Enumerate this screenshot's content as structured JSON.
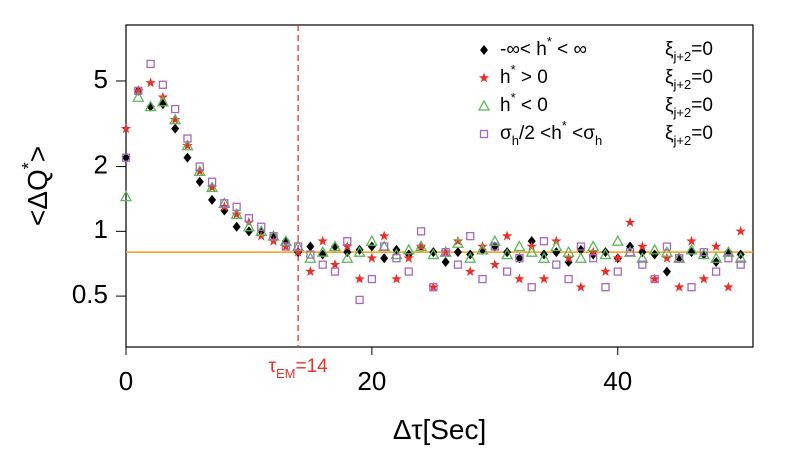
{
  "chart_data": {
    "type": "scatter",
    "xlabel": [
      {
        "text": "Δτ[Sec]"
      }
    ],
    "ylabel": [
      {
        "text": "<ΔQ"
      },
      {
        "text": "*",
        "style": "sup"
      },
      {
        "text": ">"
      }
    ],
    "xlim": [
      0,
      51
    ],
    "ylim": [
      0.29,
      9.1
    ],
    "xticks": [
      0,
      20,
      40
    ],
    "yticks": [
      0.5,
      1,
      2,
      5
    ],
    "log_y": true,
    "legend": "upper right",
    "x": [
      0,
      1,
      2,
      3,
      4,
      5,
      6,
      7,
      8,
      9,
      10,
      11,
      12,
      13,
      14,
      15,
      16,
      17,
      18,
      19,
      20,
      21,
      22,
      23,
      24,
      25,
      26,
      27,
      28,
      29,
      30,
      31,
      32,
      33,
      34,
      35,
      36,
      37,
      38,
      39,
      40,
      41,
      42,
      43,
      44,
      45,
      46,
      47,
      48,
      49,
      50
    ],
    "series": [
      {
        "name": [
          {
            "text": "-∞< h"
          },
          {
            "text": "*",
            "style": "sup"
          },
          {
            "text": " < ∞"
          }
        ],
        "condition": [
          {
            "text": "ξ"
          },
          {
            "text": "j+2",
            "style": "sub"
          },
          {
            "text": "=0"
          }
        ],
        "marker": "diamond",
        "color": "#000000",
        "values": [
          2.2,
          4.5,
          3.8,
          3.9,
          3.0,
          2.2,
          1.7,
          1.4,
          1.25,
          1.05,
          1.0,
          1.0,
          0.95,
          0.9,
          0.8,
          0.85,
          0.78,
          0.85,
          0.8,
          0.82,
          0.85,
          0.75,
          0.82,
          0.78,
          0.85,
          0.8,
          0.72,
          0.8,
          0.78,
          0.82,
          0.85,
          0.8,
          0.75,
          0.9,
          0.78,
          0.8,
          0.72,
          0.82,
          0.78,
          0.8,
          0.75,
          0.85,
          0.8,
          0.78,
          0.65,
          0.75,
          0.8,
          0.78,
          0.72,
          0.8,
          0.78
        ]
      },
      {
        "name": [
          {
            "text": "h"
          },
          {
            "text": "*",
            "style": "sup"
          },
          {
            "text": " > 0"
          }
        ],
        "condition": [
          {
            "text": "ξ"
          },
          {
            "text": "j+2",
            "style": "sub"
          },
          {
            "text": "=0"
          }
        ],
        "marker": "star",
        "color": "#e8312a",
        "values": [
          3.0,
          4.5,
          4.9,
          4.2,
          3.3,
          2.5,
          1.9,
          1.6,
          1.3,
          1.2,
          1.1,
          0.95,
          0.9,
          0.85,
          0.8,
          0.65,
          0.9,
          0.7,
          0.85,
          0.6,
          0.75,
          0.95,
          0.6,
          0.75,
          0.85,
          0.55,
          0.8,
          0.9,
          0.65,
          0.85,
          0.7,
          0.95,
          0.6,
          0.85,
          0.6,
          0.9,
          0.75,
          0.55,
          0.8,
          0.65,
          0.75,
          1.1,
          0.85,
          0.6,
          0.75,
          0.55,
          0.9,
          0.6,
          0.85,
          0.55,
          1.0
        ]
      },
      {
        "name": [
          {
            "text": "h"
          },
          {
            "text": "*",
            "style": "sup"
          },
          {
            "text": " < 0"
          }
        ],
        "condition": [
          {
            "text": "ξ"
          },
          {
            "text": "j+2",
            "style": "sub"
          },
          {
            "text": "=0"
          }
        ],
        "marker": "triangle",
        "color": "#5cb85c",
        "values": [
          1.45,
          4.2,
          3.8,
          4.0,
          3.3,
          2.5,
          1.9,
          1.6,
          1.35,
          1.2,
          1.05,
          1.0,
          0.95,
          0.9,
          0.85,
          0.75,
          0.8,
          0.85,
          0.75,
          0.8,
          0.9,
          0.85,
          0.78,
          0.82,
          0.85,
          0.78,
          0.8,
          0.88,
          0.75,
          0.82,
          0.9,
          0.78,
          0.85,
          0.8,
          0.75,
          0.85,
          0.8,
          0.75,
          0.85,
          0.78,
          0.9,
          0.8,
          0.75,
          0.82,
          0.8,
          0.75,
          0.82,
          0.78,
          0.75,
          0.8,
          0.75
        ]
      },
      {
        "name": [
          {
            "text": "σ"
          },
          {
            "text": "h",
            "style": "sub"
          },
          {
            "text": "/2 <h"
          },
          {
            "text": "*",
            "style": "sup"
          },
          {
            "text": " <σ"
          },
          {
            "text": "h",
            "style": "sub"
          }
        ],
        "condition": [
          {
            "text": "ξ"
          },
          {
            "text": "j+2",
            "style": "sub"
          },
          {
            "text": "=0"
          }
        ],
        "marker": "square",
        "color": "#a569bd",
        "values": [
          2.2,
          4.5,
          6.0,
          4.8,
          3.7,
          2.7,
          2.0,
          1.7,
          1.35,
          1.3,
          1.15,
          1.05,
          0.95,
          0.85,
          0.85,
          0.78,
          0.7,
          0.65,
          0.9,
          0.48,
          0.6,
          0.85,
          0.75,
          0.65,
          1.0,
          0.55,
          0.8,
          0.7,
          0.95,
          0.6,
          0.85,
          0.65,
          0.75,
          0.55,
          0.9,
          0.7,
          0.6,
          0.85,
          0.75,
          0.55,
          0.65,
          0.8,
          0.7,
          0.6,
          0.85,
          0.75,
          0.55,
          0.8,
          0.65,
          0.75,
          0.7
        ]
      }
    ],
    "hlines": [
      {
        "value": 0.8,
        "color": "#f39c12"
      }
    ],
    "vlines": [
      {
        "value": 14,
        "color": "#e8312a",
        "dashed": true,
        "label": [
          {
            "text": "τ"
          },
          {
            "text": "EM",
            "style": "sub"
          },
          {
            "text": "=14"
          }
        ]
      }
    ]
  }
}
